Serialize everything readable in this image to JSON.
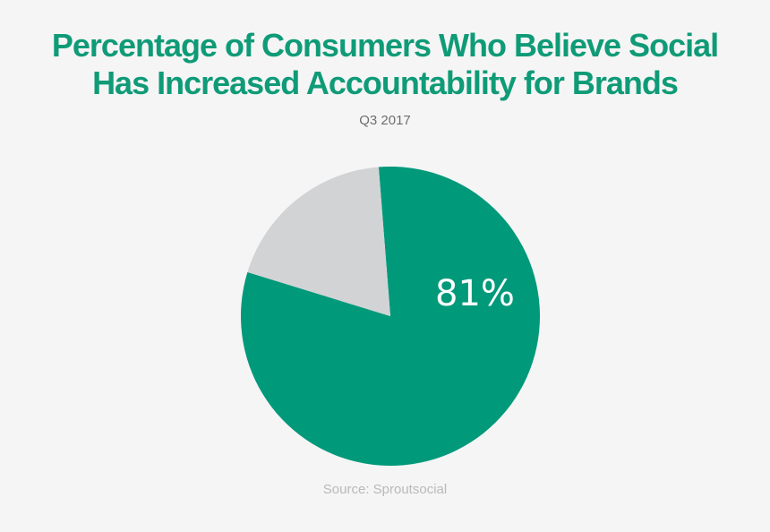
{
  "page": {
    "background_color": "#f5f5f5"
  },
  "header": {
    "title_line1": "Percentage of Consumers Who Believe Social",
    "title_line2": "Has Increased Accountability for Brands",
    "title_color": "#0f9b77",
    "subtitle": "Q3 2017",
    "subtitle_color": "#6e6e6e"
  },
  "footer": {
    "source": "Source: Sproutsocial",
    "source_color": "#b9b9b9"
  },
  "chart_data": {
    "type": "pie",
    "title": "Percentage of Consumers Who Believe Social Has Increased Accountability for Brands",
    "subtitle": "Q3 2017",
    "source": "Source: Sproutsocial",
    "legend": false,
    "start_angle_deg": -4.5,
    "data_label": "81%",
    "data_label_color": "#ffffff",
    "slices": [
      {
        "name": "believe-increased-accountability",
        "value": 81,
        "percent_label": "81%",
        "color": "#00997a"
      },
      {
        "name": "remainder",
        "value": 19,
        "percent_label": "",
        "color": "#d2d3d5"
      }
    ]
  }
}
